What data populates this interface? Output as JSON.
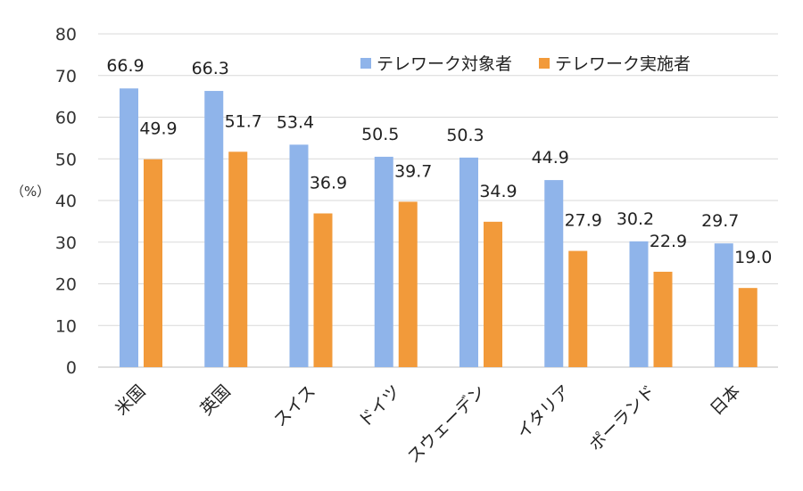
{
  "chart_data": {
    "type": "bar",
    "categories": [
      "米国",
      "英国",
      "スイス",
      "ドイツ",
      "スウェーデン",
      "イタリア",
      "ポーランド",
      "日本"
    ],
    "series": [
      {
        "name": "テレワーク対象者",
        "values": [
          66.9,
          66.3,
          53.4,
          50.5,
          50.3,
          44.9,
          30.2,
          29.7
        ],
        "labels": [
          "66.9",
          "66.3",
          "53.4",
          "50.5",
          "50.3",
          "44.9",
          "30.2",
          "29.7"
        ],
        "color": "#8fb4ea"
      },
      {
        "name": "テレワーク実施者",
        "values": [
          49.9,
          51.7,
          36.9,
          39.7,
          34.9,
          27.9,
          22.9,
          19.0
        ],
        "labels": [
          "49.9",
          "51.7",
          "36.9",
          "39.7",
          "34.9",
          "27.9",
          "22.9",
          "19.0"
        ],
        "color": "#f29a3a"
      }
    ],
    "ylim": [
      0,
      80
    ],
    "yticks": [
      "0",
      "10",
      "20",
      "30",
      "40",
      "50",
      "60",
      "70",
      "80"
    ],
    "ylabel": "（%）",
    "grid": true,
    "legend_position": "top-right"
  }
}
